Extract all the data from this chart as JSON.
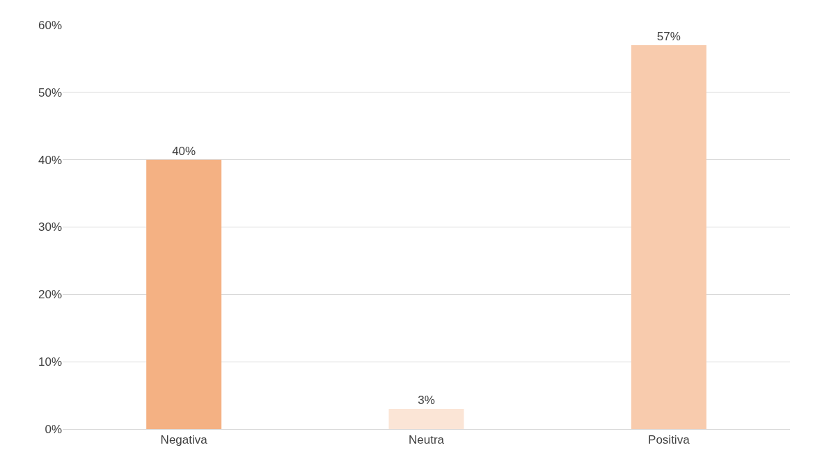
{
  "chart_data": {
    "type": "bar",
    "categories": [
      "Negativa",
      "Neutra",
      "Positiva"
    ],
    "values": [
      40,
      3,
      57
    ],
    "value_labels": [
      "40%",
      "3%",
      "57%"
    ],
    "colors": [
      "#f4b183",
      "#fbe5d6",
      "#f8cbad"
    ],
    "ylim": [
      0,
      60
    ],
    "yticks": [
      {
        "value": 0,
        "label": "0%"
      },
      {
        "value": 10,
        "label": "10%"
      },
      {
        "value": 20,
        "label": "20%"
      },
      {
        "value": 30,
        "label": "30%"
      },
      {
        "value": 40,
        "label": "40%"
      },
      {
        "value": 50,
        "label": "50%"
      },
      {
        "value": 60,
        "label": "60%"
      }
    ],
    "grid": "y"
  }
}
